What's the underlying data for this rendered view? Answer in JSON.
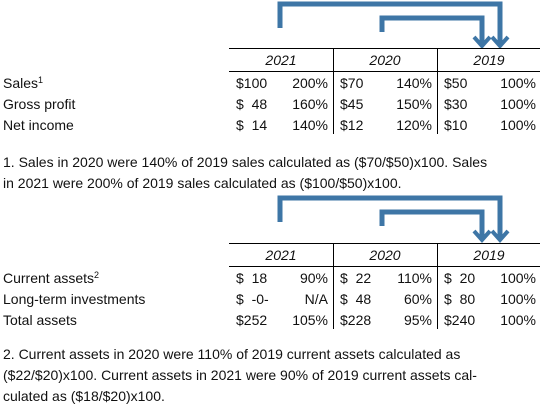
{
  "colors": {
    "arrow": "#3e76a6"
  },
  "tables": [
    {
      "years": [
        "2021",
        "2020",
        "2019"
      ],
      "rows": [
        {
          "label": "Sales",
          "sup": "1",
          "c2021": {
            "amt": "$100",
            "pct": "200%"
          },
          "c2020": {
            "amt": "$70",
            "pct": "140%"
          },
          "c2019": {
            "amt": "$50",
            "pct": "100%"
          }
        },
        {
          "label": "Gross profit",
          "sup": "",
          "c2021": {
            "amt": "$  48",
            "pct": "160%"
          },
          "c2020": {
            "amt": "$45",
            "pct": "150%"
          },
          "c2019": {
            "amt": "$30",
            "pct": "100%"
          }
        },
        {
          "label": "Net income",
          "sup": "",
          "c2021": {
            "amt": "$  14",
            "pct": "140%"
          },
          "c2020": {
            "amt": "$12",
            "pct": "120%"
          },
          "c2019": {
            "amt": "$10",
            "pct": "100%"
          }
        }
      ],
      "note_lines": [
        "1. Sales in 2020 were 140% of 2019 sales calculated as ($70/$50)x100. Sales",
        "in 2021 were 200% of 2019 sales calculated as ($100/$50)x100."
      ]
    },
    {
      "years": [
        "2021",
        "2020",
        "2019"
      ],
      "rows": [
        {
          "label": "Current assets",
          "sup": "2",
          "c2021": {
            "amt": "$  18",
            "pct": "90%"
          },
          "c2020": {
            "amt": "$  22",
            "pct": "110%"
          },
          "c2019": {
            "amt": "$  20",
            "pct": "100%"
          }
        },
        {
          "label": "Long-term investments",
          "sup": "",
          "c2021": {
            "amt": "$  -0-",
            "pct": "N/A"
          },
          "c2020": {
            "amt": "$  48",
            "pct": "60%"
          },
          "c2019": {
            "amt": "$  80",
            "pct": "100%"
          }
        },
        {
          "label": "Total assets",
          "sup": "",
          "c2021": {
            "amt": "$252",
            "pct": "105%"
          },
          "c2020": {
            "amt": "$228",
            "pct": "95%"
          },
          "c2019": {
            "amt": "$240",
            "pct": "100%"
          }
        }
      ],
      "note_lines": [
        "2.  Current assets in 2020 were 110% of 2019 current assets calculated as",
        "($22/$20)x100.  Current assets in 2021 were 90% of 2019 current assets cal-",
        "culated as ($18/$20)x100."
      ]
    }
  ]
}
